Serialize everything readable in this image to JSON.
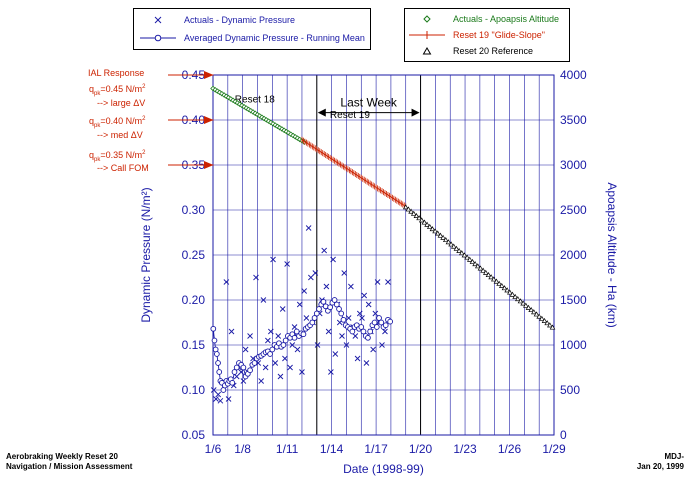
{
  "legend_left": {
    "items": [
      {
        "label": "Actuals - Dynamic Pressure",
        "marker": "x",
        "color": "#1a1aa6"
      },
      {
        "label": "Averaged Dynamic Pressure - Running Mean",
        "marker": "circle-line",
        "color": "#1a1aa6"
      }
    ]
  },
  "legend_right": {
    "items": [
      {
        "label": "Actuals - Apoapsis Altitude",
        "marker": "diamond",
        "color": "#1a7a1a"
      },
      {
        "label": "Reset 19 \"Glide-Slope\"",
        "marker": "plus-line",
        "color": "#cc2200"
      },
      {
        "label": "Reset 20 Reference",
        "marker": "triangle",
        "color": "#000000"
      }
    ]
  },
  "ial": {
    "title": "IAL Response",
    "lines": [
      {
        "q": "q",
        "sub": "pk",
        "value": "=0.45 N/m",
        "sup": "2",
        "action": "--> large ΔV"
      },
      {
        "q": "q",
        "sub": "pk",
        "value": "=0.40 N/m",
        "sup": "2",
        "action": "--> med ΔV"
      },
      {
        "q": "q",
        "sub": "pk",
        "value": "=0.35 N/m",
        "sup": "2",
        "action": "--> Call FOM"
      }
    ]
  },
  "footer": {
    "left_line1": "Aerobraking Weekly Reset 20",
    "left_line2": "Navigation / Mission Assessment",
    "right_line1": "MDJ-",
    "right_line2": "Jan 20, 1999"
  },
  "colors": {
    "axis_blue": "#1a1aa6",
    "grid_blue": "#1a1aa6",
    "red": "#cc2200",
    "green": "#1a7a1a"
  },
  "chart_data": {
    "type": "scatter",
    "xlabel": "Date (1998-99)",
    "ylabel_left": "Dynamic Pressure (N/m²)",
    "ylabel_right": "Apoapsis Altitude - Ha (km)",
    "x_ticks": [
      {
        "day": 6,
        "label": "1/6"
      },
      {
        "day": 8,
        "label": "1/8"
      },
      {
        "day": 11,
        "label": "1/11"
      },
      {
        "day": 14,
        "label": "1/14"
      },
      {
        "day": 17,
        "label": "1/17"
      },
      {
        "day": 20,
        "label": "1/20"
      },
      {
        "day": 23,
        "label": "1/23"
      },
      {
        "day": 26,
        "label": "1/26"
      },
      {
        "day": 29,
        "label": "1/29"
      }
    ],
    "x_grid_days": [
      6,
      7,
      8,
      9,
      10,
      11,
      12,
      13,
      14,
      15,
      16,
      17,
      18,
      19,
      20,
      21,
      22,
      23,
      24,
      25,
      26,
      27,
      28,
      29
    ],
    "xlim": [
      6,
      29
    ],
    "ylim_left": [
      0.05,
      0.45
    ],
    "yticks_left": [
      "0.05",
      "0.10",
      "0.15",
      "0.20",
      "0.25",
      "0.30",
      "0.35",
      "0.40",
      "0.45"
    ],
    "ylim_right": [
      0,
      4000
    ],
    "yticks_right": [
      "0",
      "500",
      "1000",
      "1500",
      "2000",
      "2500",
      "3000",
      "3500",
      "4000"
    ],
    "annotations": {
      "reset18": {
        "label": "Reset 18",
        "day": 7.2,
        "y": 0.424
      },
      "reset19": {
        "label": "Reset 19",
        "day": 15.1,
        "y": 0.4065
      },
      "last_week": {
        "label": "Last Week",
        "from_day": 13,
        "to_day": 20,
        "y": 0.416
      },
      "reset_lines_days": [
        13,
        20
      ],
      "ial_levels": [
        0.45,
        0.4,
        0.35
      ]
    },
    "series": [
      {
        "name": "Actuals - Dynamic Pressure",
        "x": [
          6.05,
          6.2,
          6.35,
          6.5,
          6.7,
          6.9,
          7.05,
          7.25,
          7.4,
          7.6,
          7.75,
          7.9,
          8.05,
          8.2,
          8.35,
          8.5,
          8.7,
          8.9,
          9.05,
          9.25,
          9.4,
          9.55,
          9.7,
          9.9,
          10.05,
          10.2,
          10.4,
          10.55,
          10.7,
          10.85,
          11.0,
          11.2,
          11.35,
          11.5,
          11.7,
          11.85,
          12.0,
          12.15,
          12.3,
          12.45,
          12.6,
          12.75,
          12.9,
          13.05,
          13.2,
          13.35,
          13.5,
          13.65,
          13.8,
          13.95,
          14.1,
          14.25,
          14.4,
          14.55,
          14.7,
          14.85,
          15.0,
          15.15,
          15.3,
          15.45,
          15.6,
          15.75,
          15.9,
          16.05,
          16.2,
          16.35,
          16.5,
          16.65,
          16.8,
          16.95,
          17.1,
          17.25,
          17.4,
          17.6,
          17.8
        ],
        "values": [
          0.1,
          0.09,
          0.095,
          0.088,
          0.11,
          0.22,
          0.09,
          0.165,
          0.105,
          0.115,
          0.125,
          0.12,
          0.11,
          0.145,
          0.12,
          0.16,
          0.135,
          0.225,
          0.13,
          0.11,
          0.2,
          0.125,
          0.155,
          0.165,
          0.245,
          0.13,
          0.16,
          0.115,
          0.19,
          0.135,
          0.24,
          0.125,
          0.15,
          0.17,
          0.145,
          0.195,
          0.12,
          0.21,
          0.18,
          0.28,
          0.225,
          0.175,
          0.23,
          0.15,
          0.185,
          0.2,
          0.255,
          0.215,
          0.165,
          0.12,
          0.245,
          0.14,
          0.195,
          0.175,
          0.16,
          0.23,
          0.15,
          0.18,
          0.215,
          0.17,
          0.16,
          0.135,
          0.185,
          0.18,
          0.205,
          0.13,
          0.195,
          0.165,
          0.145,
          0.185,
          0.22,
          0.175,
          0.15,
          0.165,
          0.22
        ]
      },
      {
        "name": "Averaged Dynamic Pressure - Running Mean",
        "x": [
          6.02,
          6.1,
          6.18,
          6.26,
          6.34,
          6.42,
          6.5,
          6.6,
          6.7,
          6.8,
          6.9,
          7.0,
          7.1,
          7.2,
          7.3,
          7.45,
          7.6,
          7.75,
          7.9,
          8.05,
          8.2,
          8.35,
          8.5,
          8.65,
          8.8,
          8.95,
          9.1,
          9.25,
          9.4,
          9.55,
          9.7,
          9.85,
          10.0,
          10.15,
          10.3,
          10.45,
          10.6,
          10.75,
          10.9,
          11.05,
          11.2,
          11.35,
          11.5,
          11.65,
          11.8,
          11.95,
          12.1,
          12.25,
          12.4,
          12.55,
          12.7,
          12.85,
          13.0,
          13.15,
          13.3,
          13.45,
          13.6,
          13.75,
          13.9,
          14.05,
          14.2,
          14.35,
          14.5,
          14.65,
          14.8,
          14.95,
          15.1,
          15.25,
          15.4,
          15.55,
          15.7,
          15.85,
          16.0,
          16.15,
          16.3,
          16.45,
          16.6,
          16.75,
          16.9,
          17.05,
          17.2,
          17.35,
          17.5,
          17.65,
          17.8,
          17.95
        ],
        "values": [
          0.168,
          0.155,
          0.145,
          0.14,
          0.13,
          0.12,
          0.11,
          0.108,
          0.1,
          0.105,
          0.11,
          0.107,
          0.11,
          0.112,
          0.108,
          0.12,
          0.125,
          0.13,
          0.128,
          0.125,
          0.115,
          0.118,
          0.122,
          0.128,
          0.13,
          0.135,
          0.137,
          0.138,
          0.14,
          0.142,
          0.143,
          0.14,
          0.145,
          0.15,
          0.148,
          0.152,
          0.148,
          0.15,
          0.155,
          0.16,
          0.158,
          0.162,
          0.158,
          0.165,
          0.16,
          0.163,
          0.162,
          0.168,
          0.17,
          0.172,
          0.175,
          0.18,
          0.185,
          0.19,
          0.195,
          0.198,
          0.193,
          0.188,
          0.192,
          0.197,
          0.2,
          0.195,
          0.19,
          0.185,
          0.178,
          0.172,
          0.17,
          0.168,
          0.165,
          0.17,
          0.172,
          0.168,
          0.17,
          0.165,
          0.16,
          0.158,
          0.165,
          0.172,
          0.175,
          0.17,
          0.18,
          0.175,
          0.17,
          0.172,
          0.178,
          0.176
        ]
      },
      {
        "name": "Actuals - Apoapsis Altitude",
        "x_start": 6.0,
        "x_end": 12.2,
        "y_start_km": 3850,
        "y_end_km": 3250,
        "step_days": 0.15
      },
      {
        "name": "Reset 19 \"Glide-Slope\"",
        "x_start": 12.0,
        "x_end": 19.0,
        "y_start_km": 3280,
        "y_end_km": 2540,
        "step_days": 0.1
      },
      {
        "name": "Reset 20 Reference",
        "x_start": 19.0,
        "x_end": 29.0,
        "y_start_km": 2530,
        "y_end_km": 1180,
        "step_days": 0.18
      }
    ]
  }
}
